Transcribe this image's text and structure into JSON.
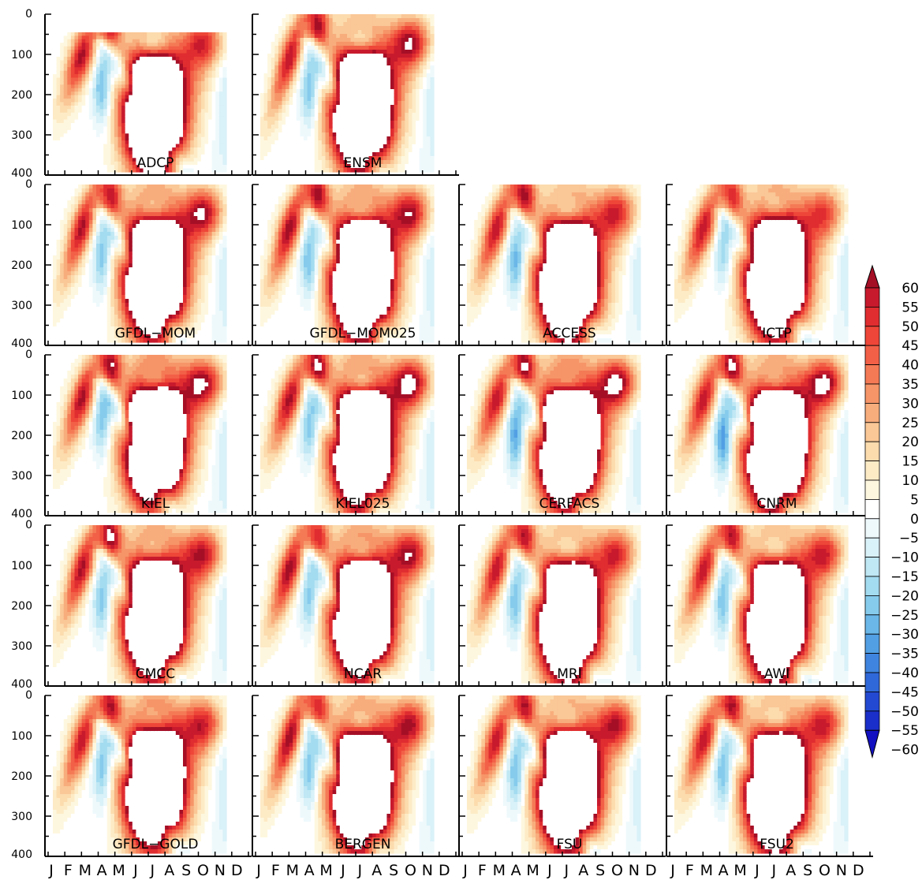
{
  "chart_data": {
    "type": "heatmap",
    "layout": {
      "rows": 5,
      "cols": 4
    },
    "ylim": [
      400,
      0
    ],
    "yticks": [
      0,
      100,
      200,
      300,
      400
    ],
    "yticklabels": [
      "0",
      "100",
      "200",
      "300",
      "400"
    ],
    "xticklabels": [
      "J",
      "F",
      "M",
      "A",
      "M",
      "J",
      "J",
      "A",
      "S",
      "O",
      "N",
      "D"
    ],
    "colorbar": {
      "levels": [
        60,
        55,
        50,
        45,
        40,
        35,
        30,
        25,
        20,
        15,
        10,
        5,
        0,
        -5,
        -10,
        -15,
        -20,
        -25,
        -30,
        -35,
        -40,
        -45,
        -50,
        -55,
        -60
      ],
      "labels": [
        "60",
        "55",
        "50",
        "45",
        "40",
        "35",
        "30",
        "25",
        "20",
        "15",
        "10",
        "5",
        "0",
        "−5",
        "−10",
        "−15",
        "−20",
        "−25",
        "−30",
        "−35",
        "−40",
        "−45",
        "−50",
        "−55",
        "−60"
      ],
      "colors": [
        "#a50f26",
        "#c81a2d",
        "#e02d30",
        "#ee4638",
        "#f26047",
        "#f47a55",
        "#f69568",
        "#f8ad7d",
        "#fac796",
        "#fcdbad",
        "#fdebc6",
        "#fef7df",
        "#ffffff",
        "#eef9fc",
        "#d9f1f8",
        "#bfe7f4",
        "#a3dbf0",
        "#86cbec",
        "#6ab7e8",
        "#529fe4",
        "#3f85df",
        "#2f68d9",
        "#2349d2",
        "#1a2ec9",
        "#1210c0"
      ]
    },
    "panels": [
      {
        "label": "ADCP",
        "row": 0,
        "col": 0,
        "depth_top": 45,
        "p": [
          55,
          125,
          72,
          48,
          12,
          0.3,
          130,
          26,
          42,
          130,
          58,
          32,
          1.4,
          180,
          32,
          240,
          200,
          22,
          4.7,
          240,
          48,
          0.6,
          150,
          42
        ]
      },
      {
        "label": "ENSM",
        "row": 0,
        "col": 1,
        "depth_top": 0,
        "p": [
          58,
          140,
          90,
          48,
          10,
          0.35,
          110,
          30,
          52,
          130,
          70,
          40,
          1.35,
          190,
          30,
          230,
          200,
          20,
          4.7,
          220,
          35,
          0.55,
          160,
          48
        ]
      },
      {
        "label": "GFDL−MOM",
        "row": 1,
        "col": 0,
        "depth_top": 0,
        "p": [
          55,
          135,
          85,
          50,
          10,
          0.35,
          115,
          26,
          50,
          115,
          62,
          38,
          1.35,
          180,
          30,
          220,
          200,
          18,
          4.7,
          220,
          30,
          0.5,
          150,
          38
        ]
      },
      {
        "label": "GFDL−MOM025",
        "row": 1,
        "col": 1,
        "depth_top": 0,
        "p": [
          58,
          140,
          85,
          52,
          10,
          0.35,
          110,
          30,
          48,
          115,
          62,
          38,
          1.35,
          190,
          32,
          225,
          210,
          22,
          4.7,
          220,
          35,
          0.55,
          160,
          45
        ]
      },
      {
        "label": "ACCESS",
        "row": 1,
        "col": 2,
        "depth_top": 0,
        "p": [
          58,
          140,
          85,
          48,
          10,
          0.35,
          110,
          28,
          40,
          105,
          58,
          34,
          1.35,
          190,
          34,
          230,
          200,
          18,
          4.7,
          230,
          35,
          0.55,
          150,
          40
        ]
      },
      {
        "label": "ICTP",
        "row": 1,
        "col": 3,
        "depth_top": 0,
        "p": [
          48,
          135,
          80,
          48,
          10,
          0.35,
          100,
          24,
          34,
          110,
          58,
          34,
          1.35,
          160,
          26,
          220,
          200,
          16,
          4.7,
          220,
          28,
          0.45,
          140,
          32
        ]
      },
      {
        "label": "KIEL",
        "row": 2,
        "col": 0,
        "depth_top": 0,
        "p": [
          60,
          135,
          78,
          50,
          10,
          0.35,
          120,
          36,
          52,
          115,
          70,
          42,
          1.35,
          160,
          30,
          210,
          200,
          18,
          4.7,
          250,
          38,
          0.5,
          160,
          50
        ]
      },
      {
        "label": "KIEL025",
        "row": 2,
        "col": 1,
        "depth_top": 0,
        "p": [
          62,
          140,
          78,
          50,
          10,
          0.3,
          125,
          42,
          55,
          115,
          70,
          42,
          1.35,
          180,
          30,
          220,
          200,
          20,
          4.7,
          250,
          40,
          0.55,
          170,
          55
        ]
      },
      {
        "label": "CERFACS",
        "row": 2,
        "col": 2,
        "depth_top": 0,
        "p": [
          60,
          140,
          78,
          48,
          10,
          0.35,
          115,
          30,
          55,
          115,
          70,
          42,
          1.35,
          200,
          38,
          220,
          210,
          20,
          4.7,
          240,
          40,
          0.55,
          160,
          48
        ]
      },
      {
        "label": "CNRM",
        "row": 2,
        "col": 3,
        "depth_top": 0,
        "p": [
          62,
          140,
          80,
          48,
          10,
          0.35,
          110,
          30,
          55,
          120,
          72,
          44,
          1.35,
          210,
          40,
          225,
          210,
          20,
          4.7,
          240,
          40,
          0.55,
          150,
          45
        ]
      },
      {
        "label": "CMCC",
        "row": 3,
        "col": 0,
        "depth_top": 0,
        "p": [
          62,
          135,
          85,
          50,
          10,
          0.35,
          115,
          30,
          45,
          115,
          62,
          38,
          1.35,
          190,
          30,
          220,
          200,
          18,
          4.7,
          230,
          32,
          0.5,
          150,
          42
        ]
      },
      {
        "label": "NCAR",
        "row": 3,
        "col": 1,
        "depth_top": 0,
        "p": [
          48,
          140,
          85,
          52,
          10,
          0.35,
          115,
          32,
          48,
          115,
          65,
          40,
          1.35,
          180,
          28,
          220,
          200,
          18,
          4.7,
          230,
          35,
          0.55,
          160,
          48
        ]
      },
      {
        "label": "MRI",
        "row": 3,
        "col": 2,
        "depth_top": 0,
        "p": [
          55,
          140,
          85,
          48,
          10,
          0.35,
          115,
          28,
          40,
          115,
          58,
          34,
          1.35,
          190,
          32,
          230,
          200,
          18,
          4.7,
          230,
          32,
          0.5,
          150,
          40
        ]
      },
      {
        "label": "AWI",
        "row": 3,
        "col": 3,
        "depth_top": 0,
        "p": [
          55,
          140,
          80,
          48,
          10,
          0.35,
          115,
          28,
          42,
          115,
          58,
          36,
          1.35,
          190,
          32,
          230,
          200,
          18,
          4.7,
          230,
          32,
          0.5,
          150,
          40
        ]
      },
      {
        "label": "GFDL−GOLD",
        "row": 4,
        "col": 0,
        "depth_top": 0,
        "p": [
          55,
          140,
          80,
          48,
          10,
          0.35,
          110,
          24,
          42,
          115,
          62,
          38,
          1.35,
          180,
          30,
          215,
          200,
          18,
          4.7,
          230,
          32,
          0.5,
          150,
          40
        ]
      },
      {
        "label": "BERGEN",
        "row": 4,
        "col": 1,
        "depth_top": 0,
        "p": [
          50,
          135,
          90,
          52,
          10,
          0.35,
          110,
          30,
          48,
          125,
          70,
          42,
          1.35,
          190,
          30,
          225,
          200,
          18,
          4.7,
          230,
          35,
          0.55,
          160,
          45
        ]
      },
      {
        "label": "FSU",
        "row": 4,
        "col": 2,
        "depth_top": 0,
        "p": [
          55,
          140,
          80,
          48,
          10,
          0.35,
          110,
          28,
          45,
          115,
          62,
          38,
          1.35,
          190,
          32,
          225,
          200,
          18,
          4.7,
          230,
          32,
          0.5,
          150,
          40
        ]
      },
      {
        "label": "FSU2",
        "row": 4,
        "col": 3,
        "depth_top": 0,
        "p": [
          55,
          140,
          78,
          48,
          10,
          0.35,
          110,
          30,
          42,
          115,
          60,
          36,
          1.35,
          190,
          32,
          230,
          200,
          18,
          4.7,
          230,
          32,
          0.5,
          150,
          40
        ]
      }
    ]
  }
}
